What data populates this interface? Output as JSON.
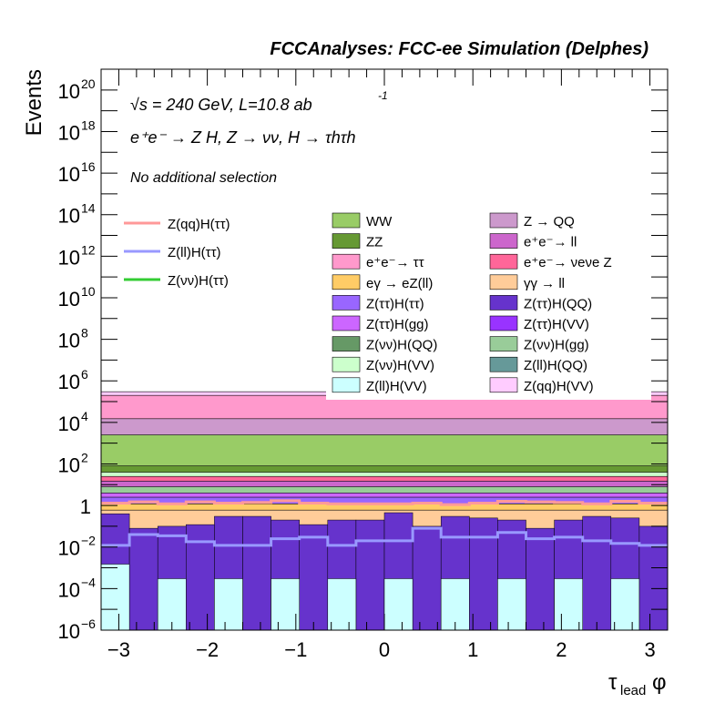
{
  "chart_data": {
    "type": "area",
    "title": "FCCAnalyses: FCC-ee Simulation (Delphes)",
    "xlabel": "τ_lead φ",
    "ylabel": "Events",
    "yscale": "log",
    "xlim": [
      -3.2,
      3.2
    ],
    "ylim": [
      1e-06,
      1e+21
    ],
    "x_ticks": [
      "−3",
      "−2",
      "−1",
      "0",
      "1",
      "2",
      "3"
    ],
    "y_ticks": [
      {
        "exp": -6,
        "label": "10",
        "sup": "−6"
      },
      {
        "exp": -4,
        "label": "10",
        "sup": "−4"
      },
      {
        "exp": -2,
        "label": "10",
        "sup": "−2"
      },
      {
        "exp": 0,
        "label": "1",
        "sup": ""
      },
      {
        "exp": 2,
        "label": "10",
        "sup": "2"
      },
      {
        "exp": 4,
        "label": "10",
        "sup": "4"
      },
      {
        "exp": 6,
        "label": "10",
        "sup": "6"
      },
      {
        "exp": 8,
        "label": "10",
        "sup": "8"
      },
      {
        "exp": 10,
        "label": "10",
        "sup": "10"
      },
      {
        "exp": 12,
        "label": "10",
        "sup": "12"
      },
      {
        "exp": 14,
        "label": "10",
        "sup": "14"
      },
      {
        "exp": 16,
        "label": "10",
        "sup": "16"
      },
      {
        "exp": 18,
        "label": "10",
        "sup": "18"
      },
      {
        "exp": 20,
        "label": "10",
        "sup": "20"
      }
    ],
    "annotations": {
      "energy": "√s = 240 GeV, L=10.8 ab",
      "energy_sup": "-1",
      "process": "e⁺e⁻ → Z H, Z → νν, H → τhτh",
      "selection": "No additional selection"
    },
    "bins": 20,
    "stack_bands": [
      {
        "name": "Z(qq)H(VV)",
        "color": "#ffccff",
        "level": 300000.0
      },
      {
        "name": "e+e- → ττ",
        "color": "#ff99cc",
        "level": 200000.0
      },
      {
        "name": "Z → QQ",
        "color": "#cc99cc",
        "level": 15000.0
      },
      {
        "name": "WW",
        "color": "#99cc66",
        "level": 2500.0
      },
      {
        "name": "ZZ",
        "color": "#669933",
        "level": 80
      },
      {
        "name": "Z(νν)H(VV)",
        "color": "#ccffcc",
        "level": 40
      },
      {
        "name": "e+e- → νeνe Z",
        "color": "#ff6699",
        "level": 25
      },
      {
        "name": "e+e- → ll",
        "color": "#cc66cc",
        "level": 15
      },
      {
        "name": "Z(νν)H(gg)",
        "color": "#99cc99",
        "level": 8
      },
      {
        "name": "Z(ττ)H(gg)",
        "color": "#cc66ff",
        "level": 4
      },
      {
        "name": "Z(ττ)H(ττ)",
        "color": "#9966ff",
        "level": 2.5
      },
      {
        "name": "eγ → eZ(ll)",
        "color": "#ffcc66",
        "level": 1.2
      },
      {
        "name": "γγ → ll",
        "color": "#ffcc99",
        "level": 0.6
      }
    ],
    "bottom_bins": [
      {
        "color": "#6633cc",
        "top": 0.4
      },
      {
        "color": "#6633cc",
        "top": 0.08
      },
      {
        "color": "#6633cc",
        "top": 0.1
      },
      {
        "color": "#6633cc",
        "top": 0.12
      },
      {
        "color": "#6633cc",
        "top": 0.3
      },
      {
        "color": "#6633cc",
        "top": 0.3
      },
      {
        "color": "#6633cc",
        "top": 0.2
      },
      {
        "color": "#6633cc",
        "top": 0.12
      },
      {
        "color": "#6633cc",
        "top": 0.2
      },
      {
        "color": "#6633cc",
        "top": 0.2
      },
      {
        "color": "#6633cc",
        "top": 0.45
      },
      {
        "color": "#6633cc",
        "top": 0.1
      },
      {
        "color": "#6633cc",
        "top": 0.3
      },
      {
        "color": "#6633cc",
        "top": 0.25
      },
      {
        "color": "#6633cc",
        "top": 0.2
      },
      {
        "color": "#6633cc",
        "top": 0.08
      },
      {
        "color": "#6633cc",
        "top": 0.2
      },
      {
        "color": "#6633cc",
        "top": 0.3
      },
      {
        "color": "#6633cc",
        "top": 0.25
      },
      {
        "color": "#6633cc",
        "top": 0.1
      }
    ],
    "cyan_bins": [
      0.0015,
      0.0003,
      0.0003,
      0.0003,
      0.0003,
      0.0003,
      0.0003,
      0.0003,
      0.0003,
      0.0003,
      0.0003,
      0.0003,
      0.0003,
      0.0003,
      0.0003,
      0.0003,
      0.0003,
      0.0003,
      0.0003,
      0.0003
    ],
    "lines": [
      {
        "name": "Z(qq)H(ττ)",
        "color": "#ff9999",
        "values": [
          1.3,
          1.5,
          1.2,
          1.5,
          1.3,
          1.4,
          1.7,
          1.3,
          1.2,
          1.2,
          1.2,
          1.3,
          1.1,
          1.3,
          1.6,
          1.5,
          1.4,
          1.2,
          1.6,
          1.3
        ]
      },
      {
        "name": "Z(ll)H(ττ)",
        "color": "#9999ff",
        "values": [
          0.012,
          0.04,
          0.035,
          0.018,
          0.012,
          0.012,
          0.025,
          0.03,
          0.012,
          0.02,
          0.02,
          0.08,
          0.03,
          0.03,
          0.05,
          0.025,
          0.03,
          0.02,
          0.015,
          0.012
        ]
      },
      {
        "name": "Z(νν)H(ττ)",
        "color": "#33cc33",
        "values": []
      }
    ],
    "legend_lines": [
      "Z(qq)H(ττ)",
      "Z(ll)H(ττ)",
      "Z(νν)H(ττ)"
    ],
    "legend_boxes": [
      {
        "label": "WW",
        "color": "#99cc66"
      },
      {
        "label": "Z → QQ",
        "color": "#cc99cc"
      },
      {
        "label": "ZZ",
        "color": "#669933"
      },
      {
        "label": "e⁺e⁻→ ll",
        "color": "#cc66cc"
      },
      {
        "label": "e⁺e⁻→ ττ",
        "color": "#ff99cc"
      },
      {
        "label": "e⁺e⁻→ νeνe Z",
        "color": "#ff6699"
      },
      {
        "label": "eγ → eZ(ll)",
        "color": "#ffcc66"
      },
      {
        "label": "γγ → ll",
        "color": "#ffcc99"
      },
      {
        "label": "Z(ττ)H(ττ)",
        "color": "#9966ff"
      },
      {
        "label": "Z(ττ)H(QQ)",
        "color": "#6633cc"
      },
      {
        "label": "Z(ττ)H(gg)",
        "color": "#cc66ff"
      },
      {
        "label": "Z(ττ)H(VV)",
        "color": "#9933ff"
      },
      {
        "label": "Z(νν)H(QQ)",
        "color": "#669966"
      },
      {
        "label": "Z(νν)H(gg)",
        "color": "#99cc99"
      },
      {
        "label": "Z(νν)H(VV)",
        "color": "#ccffcc"
      },
      {
        "label": "Z(ll)H(QQ)",
        "color": "#669999"
      },
      {
        "label": "Z(ll)H(VV)",
        "color": "#ccffff"
      },
      {
        "label": "Z(qq)H(VV)",
        "color": "#ffccff"
      }
    ]
  }
}
